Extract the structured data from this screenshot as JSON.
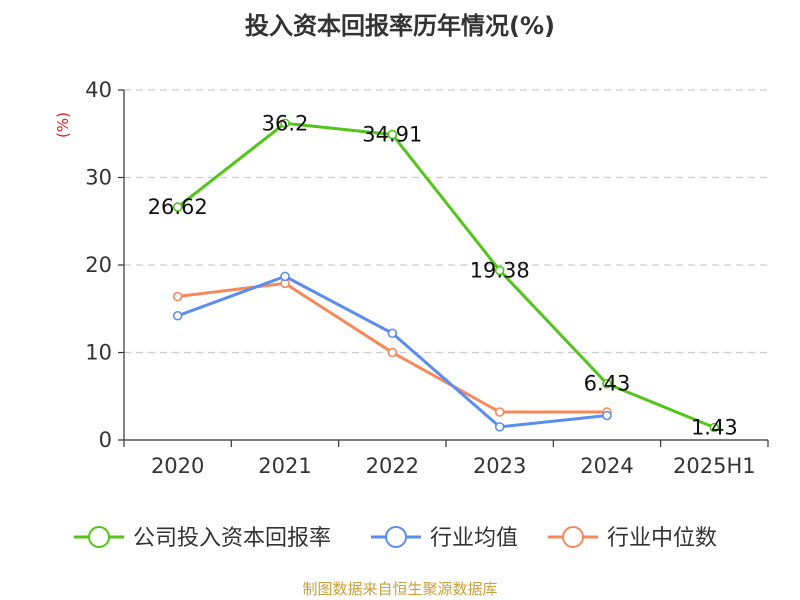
{
  "chart_data": {
    "type": "line",
    "title": "投入资本回报率历年情况(%)",
    "ylabel": "(%)",
    "xlabel": "",
    "categories": [
      "2020",
      "2021",
      "2022",
      "2023",
      "2024",
      "2025H1"
    ],
    "ylim": [
      0,
      40
    ],
    "yticks": [
      0,
      10,
      20,
      30,
      40
    ],
    "grid": true,
    "legend_position": "bottom",
    "series": [
      {
        "name": "公司投入资本回报率",
        "color": "#52c41a",
        "values": [
          26.62,
          36.2,
          34.91,
          19.38,
          6.43,
          1.43
        ],
        "labels": [
          "26.62",
          "36.2",
          "34.91",
          "19.38",
          "6.43",
          "1.43"
        ]
      },
      {
        "name": "行业均值",
        "color": "#5b8def",
        "values": [
          14.2,
          18.7,
          12.2,
          1.5,
          2.8,
          null
        ]
      },
      {
        "name": "行业中位数",
        "color": "#f5895a",
        "values": [
          16.4,
          17.9,
          10.0,
          3.2,
          3.2,
          null
        ]
      }
    ]
  },
  "source_text": "制图数据来自恒生聚源数据库"
}
